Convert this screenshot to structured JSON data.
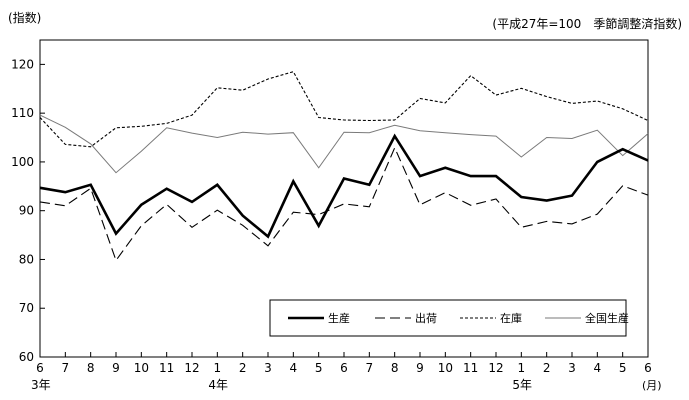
{
  "chart_data": {
    "type": "line",
    "unit_label": "(指数)",
    "note": "(平成27年=100　季節調整済指数)",
    "x_ticks": [
      "6",
      "7",
      "8",
      "9",
      "10",
      "11",
      "12",
      "1",
      "2",
      "3",
      "4",
      "5",
      "6",
      "7",
      "8",
      "9",
      "10",
      "11",
      "12",
      "1",
      "2",
      "3",
      "4",
      "5",
      "6"
    ],
    "x_unit": "(月)",
    "year_labels": [
      {
        "label": "3年",
        "index": 0
      },
      {
        "label": "4年",
        "index": 7
      },
      {
        "label": "5年",
        "index": 19
      }
    ],
    "ylim": [
      60,
      125
    ],
    "y_ticks": [
      60,
      70,
      80,
      90,
      100,
      110,
      120
    ],
    "grid": false,
    "legend_position": "bottom-right",
    "series": [
      {
        "name": "生産",
        "style": "thick-solid",
        "values": [
          94.7,
          93.8,
          95.3,
          85.3,
          91.2,
          94.5,
          91.8,
          95.3,
          89.0,
          84.7,
          96.0,
          86.9,
          96.6,
          95.3,
          105.3,
          97.1,
          98.8,
          97.1,
          97.1,
          92.8,
          92.1,
          93.1,
          100.0,
          102.6,
          100.3
        ]
      },
      {
        "name": "出荷",
        "style": "dashed",
        "values": [
          91.8,
          91.0,
          94.6,
          79.8,
          86.9,
          91.3,
          86.6,
          90.1,
          87.0,
          82.8,
          89.7,
          89.2,
          91.4,
          90.8,
          102.9,
          91.2,
          93.7,
          91.1,
          92.4,
          86.6,
          87.8,
          87.3,
          89.3,
          95.1,
          93.2
        ]
      },
      {
        "name": "在庫",
        "style": "dotted",
        "values": [
          109.1,
          103.6,
          103.1,
          107.0,
          107.3,
          107.9,
          109.6,
          115.2,
          114.7,
          117.0,
          118.5,
          109.1,
          108.6,
          108.5,
          108.6,
          113.0,
          112.1,
          117.7,
          113.7,
          115.1,
          113.4,
          112.0,
          112.5,
          110.9,
          108.5
        ]
      },
      {
        "name": "全国生産",
        "style": "thin-solid",
        "values": [
          109.6,
          107.1,
          103.7,
          97.8,
          102.2,
          107.0,
          105.9,
          105.0,
          106.1,
          105.7,
          106.0,
          98.8,
          106.1,
          106.0,
          107.5,
          106.4,
          106.0,
          105.6,
          105.3,
          101.0,
          105.0,
          104.8,
          106.5,
          101.3,
          105.8
        ]
      }
    ]
  }
}
